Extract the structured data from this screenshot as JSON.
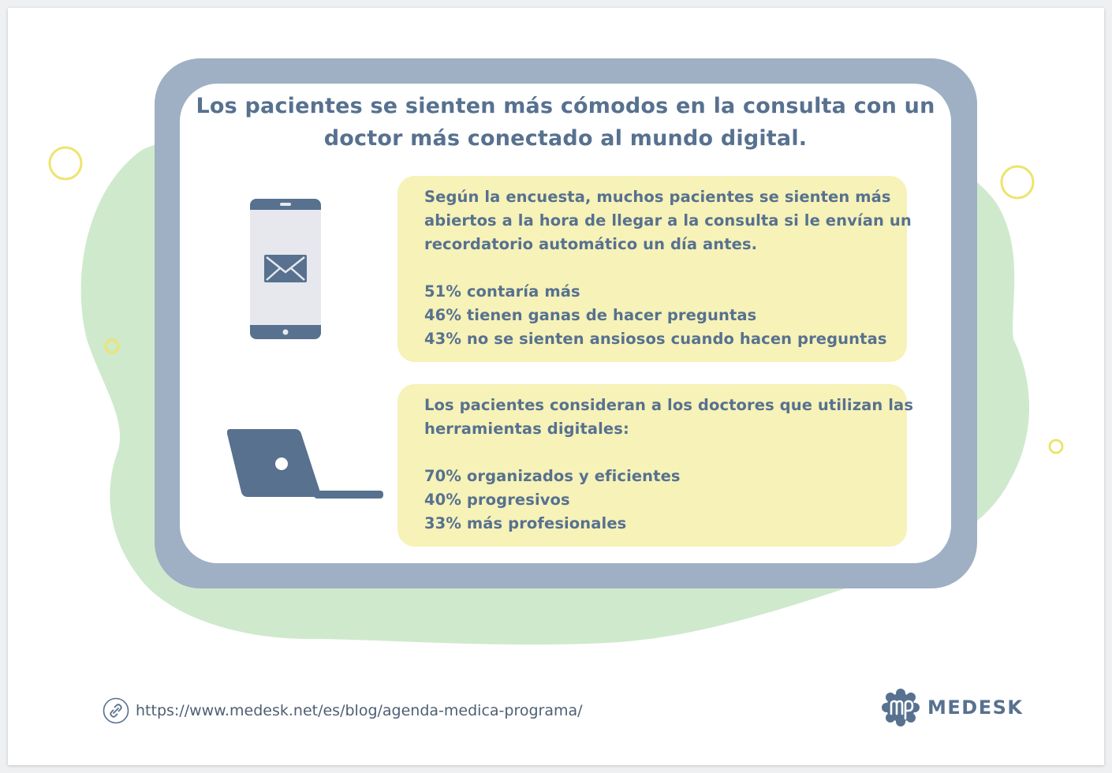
{
  "title": "Los pacientes se sienten más cómodos en la consulta con un doctor más conectado al mundo digital.",
  "panels": [
    {
      "intro": [
        "Según la encuesta, muchos pacientes se sienten más",
        "abiertos a la hora de llegar a la consulta si le envían un",
        "recordatorio automático un día antes."
      ],
      "stats": [
        "51% contaría más",
        "46% tienen ganas de hacer preguntas",
        "43% no se sienten ansiosos cuando hacen preguntas"
      ],
      "icon": "smartphone-mail-icon"
    },
    {
      "intro": [
        "Los pacientes consideran a los doctores que utilizan las",
        "herramientas digitales:"
      ],
      "stats": [
        "70% organizados y eficientes",
        "40% progresivos",
        "33% más profesionales"
      ],
      "icon": "laptop-icon"
    }
  ],
  "footer": {
    "url": "https://www.medesk.net/es/blog/agenda-medica-programa/",
    "link_icon": "link-icon",
    "brand": "MEDESK",
    "brand_icon": "medesk-logo-icon"
  },
  "colors": {
    "primary_text": "#57718f",
    "tablet_frame": "#9fb0c4",
    "panel_fill": "#f6f2b8",
    "blob": "#cfe9cd",
    "ring": "#ede46e"
  }
}
